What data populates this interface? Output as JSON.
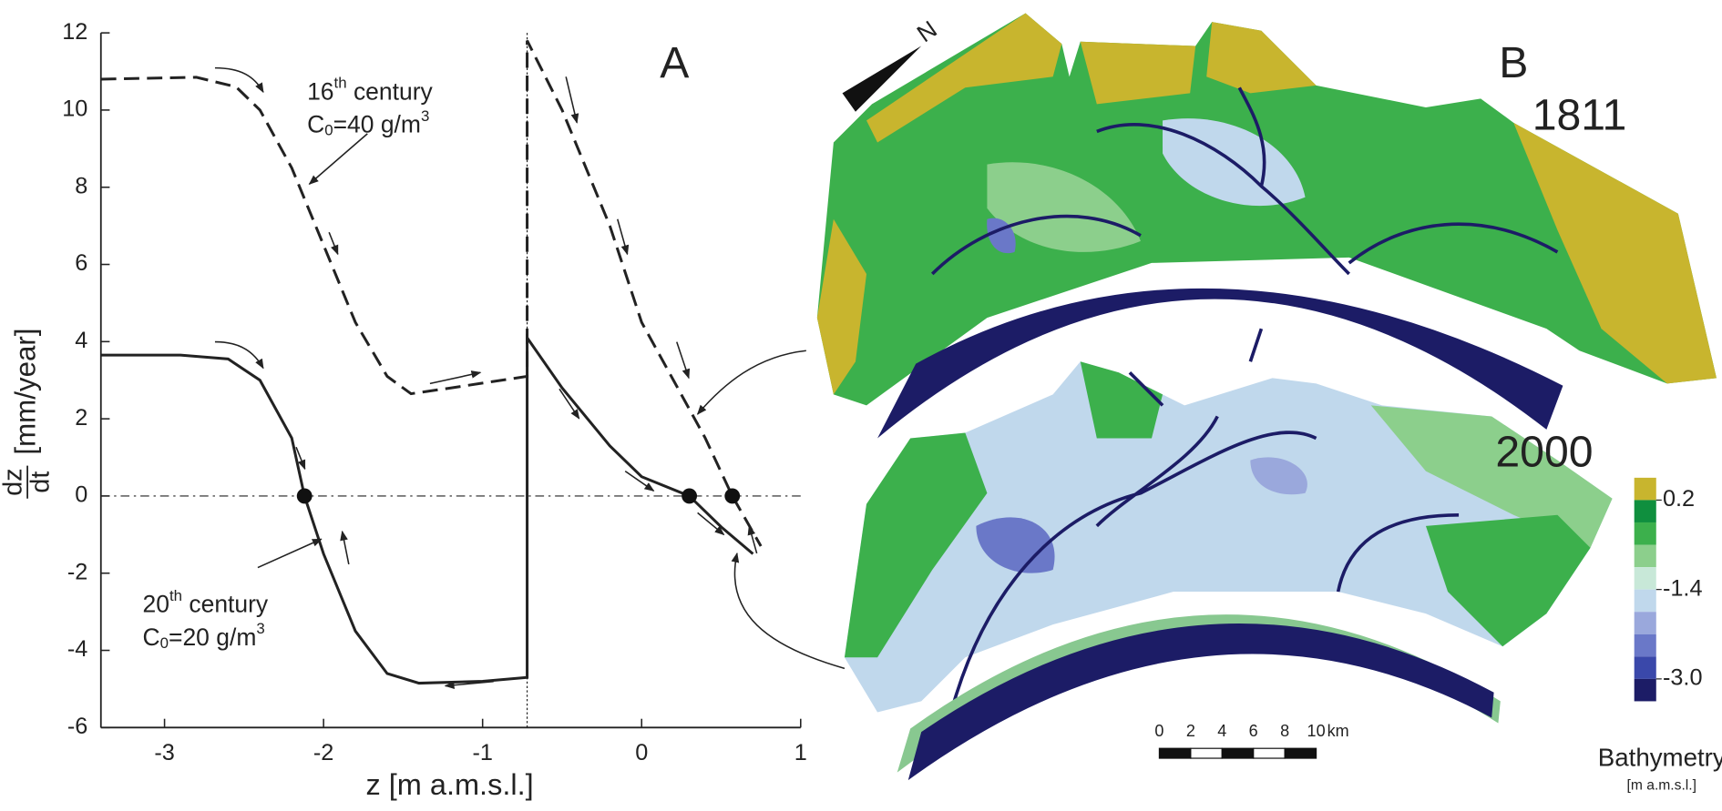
{
  "chart_data": {
    "type": "line",
    "panel_label": "A",
    "xlabel": "z [m a.m.s.l.]",
    "ylabel_fraction": [
      "dz",
      "dt"
    ],
    "ylabel": "[mm/year]",
    "xlim": [
      -3.4,
      1
    ],
    "ylim": [
      -6,
      12
    ],
    "xticks": [
      -3,
      -2,
      -1,
      0,
      1
    ],
    "yticks": [
      -6,
      -4,
      -2,
      0,
      2,
      4,
      6,
      8,
      10,
      12
    ],
    "vline": -0.72,
    "hline": 0,
    "series": [
      {
        "color": "#222222",
        "dash": true,
        "x": [
          -3.4,
          -2.8,
          -2.55,
          -2.4,
          -2.2,
          -2.0,
          -1.8,
          -1.6,
          -1.45,
          -1.2,
          -0.72,
          -0.72,
          -0.5,
          -0.2,
          0,
          0.2,
          0.4,
          0.57,
          0.75
        ],
        "values": [
          10.8,
          10.85,
          10.6,
          10.0,
          8.5,
          6.5,
          4.5,
          3.1,
          2.65,
          2.8,
          3.1,
          11.8,
          10,
          7,
          4.5,
          3,
          1.5,
          0,
          -1.3
        ]
      },
      {
        "color": "#222222",
        "dash": false,
        "x": [
          -3.4,
          -2.9,
          -2.6,
          -2.4,
          -2.2,
          -2.12,
          -2.0,
          -1.8,
          -1.6,
          -1.4,
          -1.0,
          -0.72,
          -0.72,
          -0.5,
          -0.2,
          0,
          0.3,
          0.5,
          0.7
        ],
        "values": [
          3.65,
          3.65,
          3.55,
          3.0,
          1.5,
          0,
          -1.5,
          -3.5,
          -4.6,
          -4.85,
          -4.8,
          -4.7,
          4.1,
          2.8,
          1.3,
          0.5,
          0,
          -0.8,
          -1.5
        ]
      }
    ],
    "points": {
      "x": [
        -2.12,
        0.3,
        0.57
      ],
      "values": [
        0,
        0,
        0
      ]
    },
    "annotations": {
      "c16": {
        "line1": [
          "16",
          "th",
          " century"
        ],
        "line2": [
          "C",
          "0",
          "=40 g/m",
          "3"
        ]
      },
      "c20": {
        "line1": [
          "20",
          "th",
          " century"
        ],
        "line2": [
          "C",
          "0",
          "=20 g/m",
          "3"
        ]
      }
    }
  },
  "map": {
    "panel_label": "B",
    "north": "N",
    "year_top": "1811",
    "year_bottom": "2000",
    "colorbar": {
      "title": "Bathymetry",
      "unit": "[m a.m.s.l.]",
      "bins": [
        0.6,
        0.2,
        -0.2,
        -0.6,
        -1.0,
        -1.4,
        -1.8,
        -2.2,
        -2.6,
        -3.0,
        -3.4
      ],
      "colors": [
        "#c8b52e",
        "#0f8f3e",
        "#3cb04c",
        "#8ccf8c",
        "#c8e8d8",
        "#c0d8ec",
        "#9aa8dc",
        "#6a78c8",
        "#3a48aa",
        "#1c1c66"
      ],
      "ticks": [
        0.2,
        -1.4,
        {
          "value": -3,
          "label": "-3.0"
        }
      ]
    },
    "scalebar": {
      "ticks": [
        0,
        2,
        4,
        6,
        8,
        10
      ],
      "unit": "km"
    }
  }
}
